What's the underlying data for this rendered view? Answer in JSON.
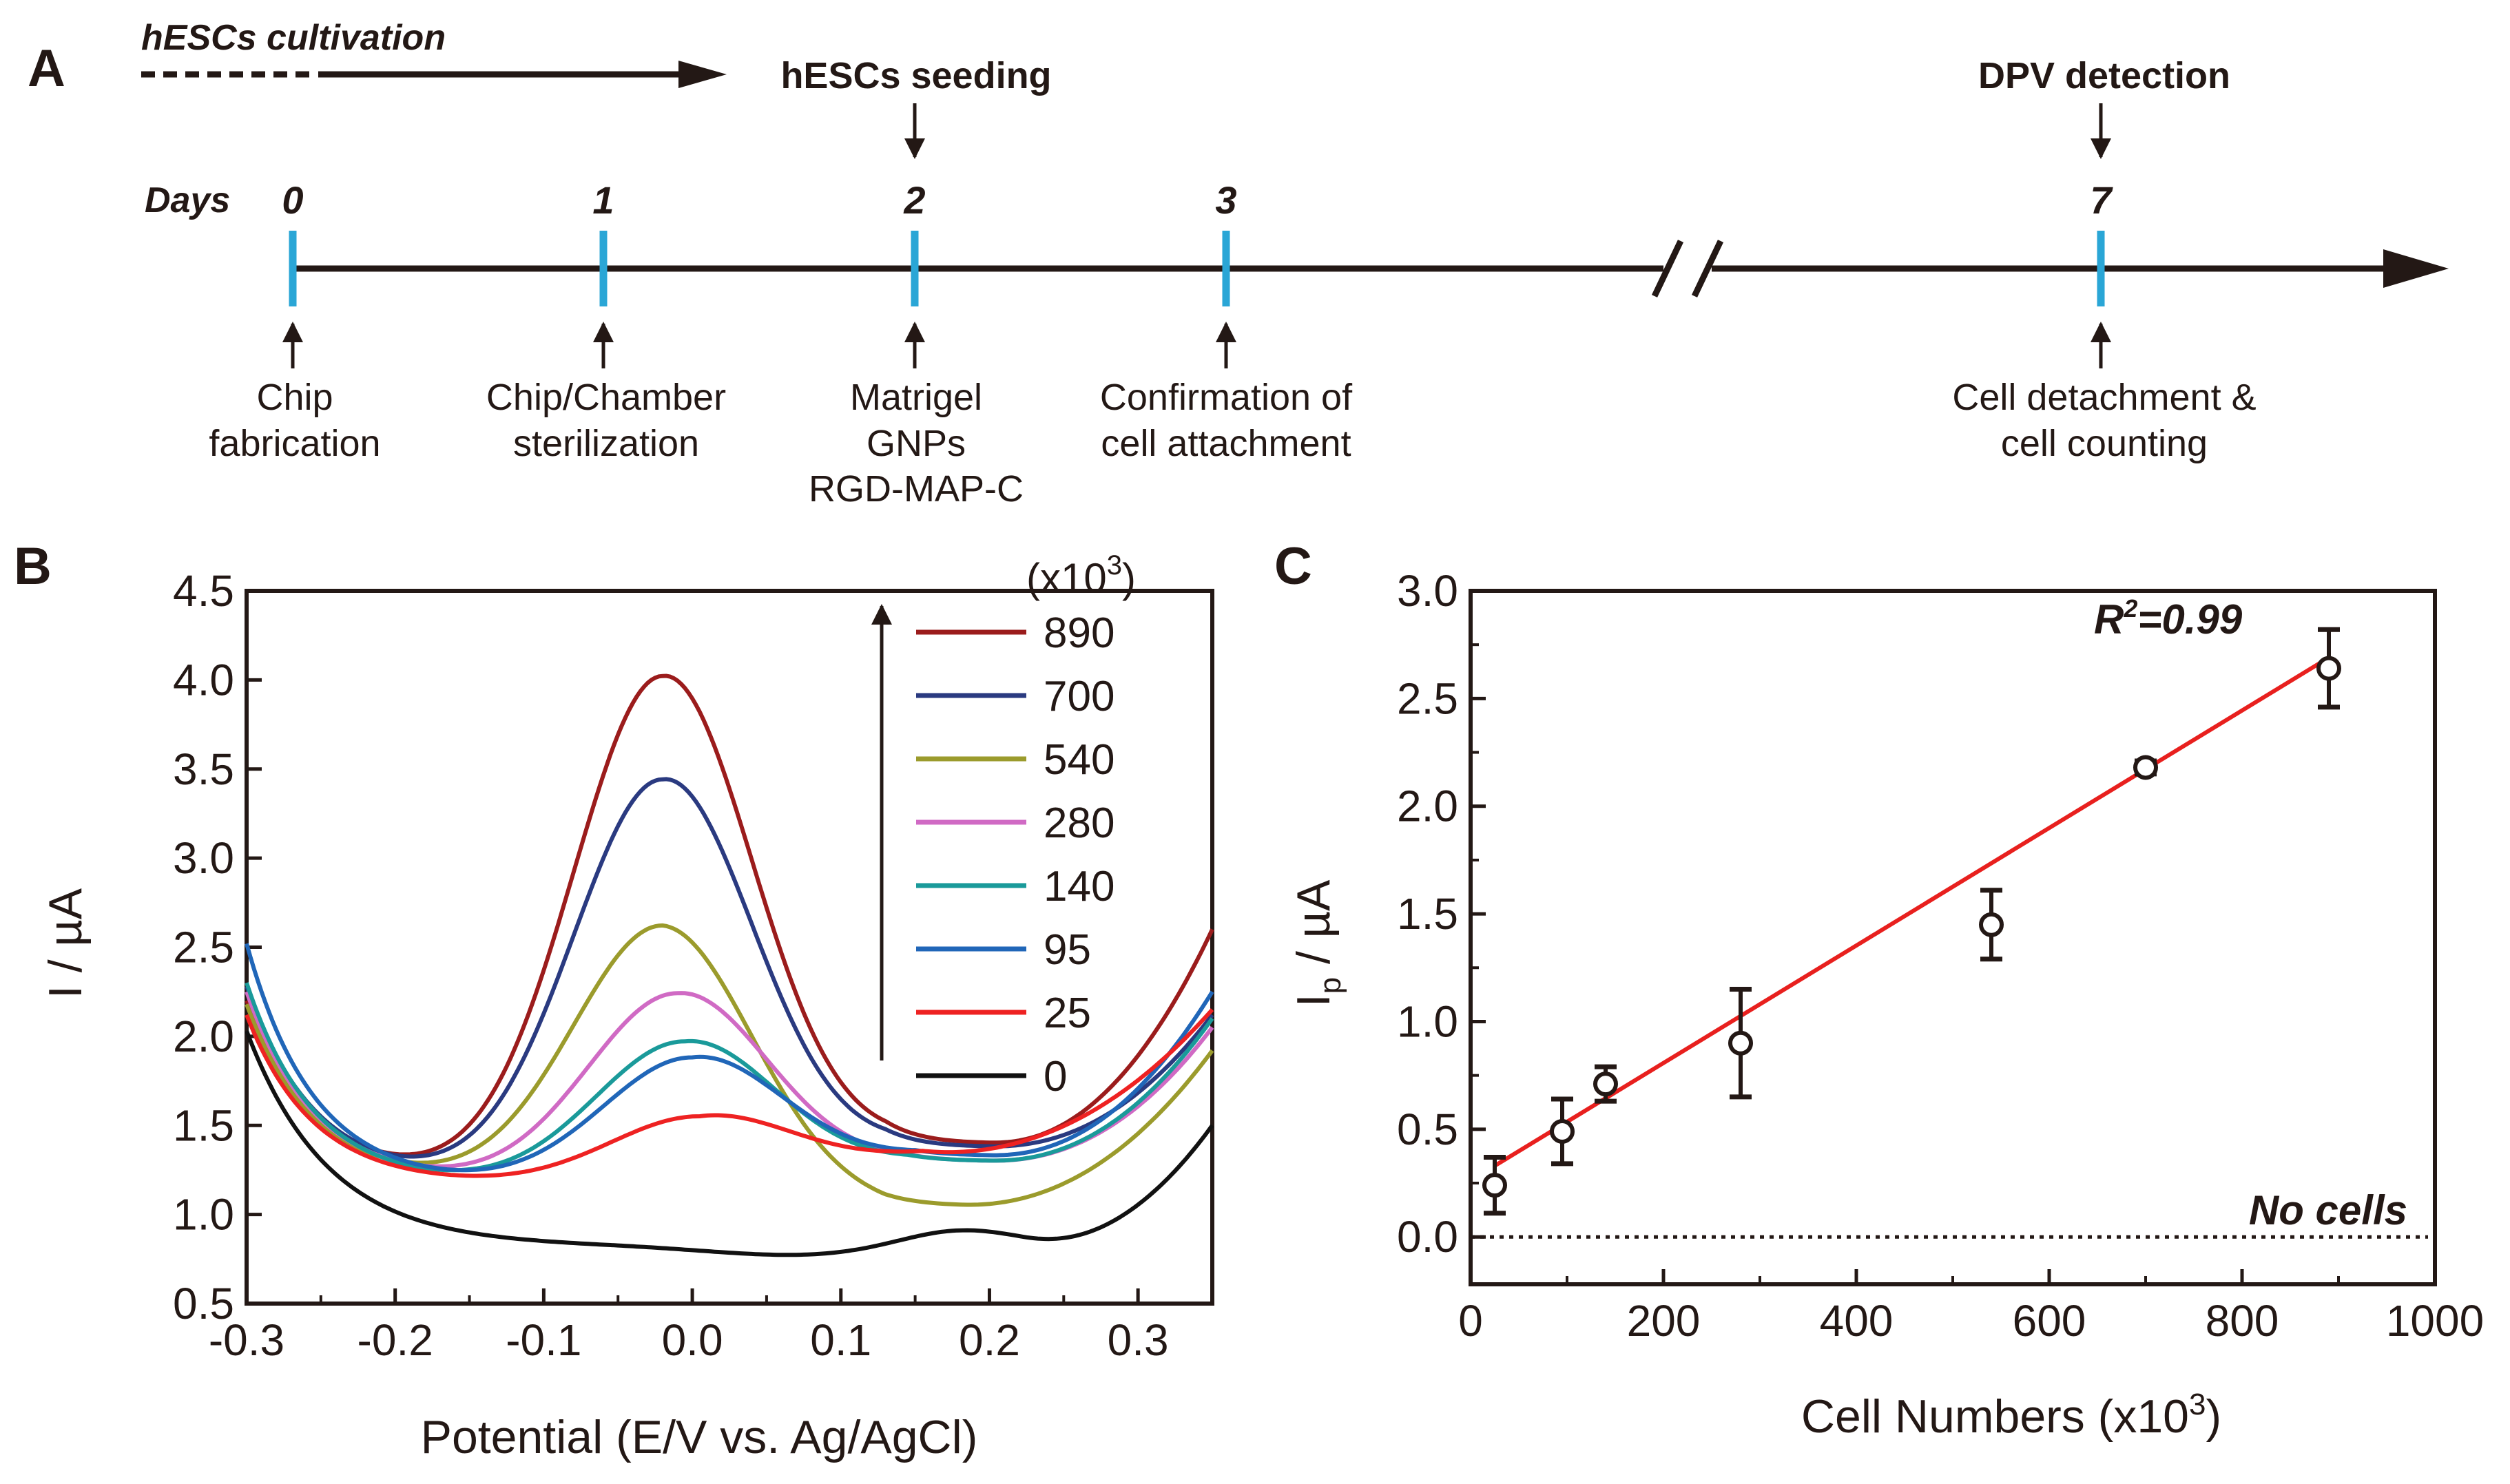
{
  "panelA": {
    "letter": "A",
    "cultivation_label": "hESCs cultivation",
    "days_label": "Days",
    "timeline": [
      {
        "day": "0",
        "label_lines": [
          "Chip",
          "fabrication"
        ]
      },
      {
        "day": "1",
        "label_lines": [
          "Chip/Chamber",
          "sterilization"
        ]
      },
      {
        "day": "2",
        "label_lines": [
          "Matrigel",
          "GNPs",
          "RGD-MAP-C"
        ]
      },
      {
        "day": "3",
        "label_lines": [
          "Confirmation of",
          "cell attachment"
        ]
      },
      {
        "day": "7",
        "label_lines": [
          "Cell detachment &",
          "cell counting"
        ]
      }
    ],
    "seeding_label": "hESCs seeding",
    "dpv_label": "DPV detection"
  },
  "colors": {
    "tick_blue": "#2aa6d6",
    "fit_red": "#e8201e",
    "ink": "#231815"
  },
  "chart_data": [
    {
      "panel": "B",
      "type": "line",
      "title": "",
      "xlabel": "Potential (E/V vs. Ag/AgCl)",
      "ylabel": "I / µA",
      "xlim": [
        -0.3,
        0.35
      ],
      "ylim": [
        0.5,
        4.5
      ],
      "xticks": [
        -0.3,
        -0.2,
        -0.1,
        0.0,
        0.1,
        0.2,
        0.3
      ],
      "xtick_labels": [
        "-0.3",
        "-0.2",
        "-0.1",
        "0.0",
        "0.1",
        "0.2",
        "0.3"
      ],
      "yticks": [
        0.5,
        1.0,
        1.5,
        2.0,
        2.5,
        3.0,
        3.5,
        4.0,
        4.5
      ],
      "ytick_labels": [
        "0.5",
        "1.0",
        "1.5",
        "2.0",
        "2.5",
        "3.0",
        "3.5",
        "4.0",
        "4.5"
      ],
      "legend_title": "(x10",
      "legend_title_sup": "3",
      "legend_title_end": ")",
      "legend_position": "top-right",
      "series": [
        {
          "name": "890",
          "color": "#9b1c1c",
          "start": 2.2,
          "valley": 1.2,
          "valley_x": -0.17,
          "peak": 4.02,
          "peak_x": -0.02,
          "min2": 1.4,
          "min2_x": 0.2,
          "end": 2.6
        },
        {
          "name": "700",
          "color": "#2a3a80",
          "start": 2.28,
          "valley": 1.19,
          "valley_x": -0.17,
          "peak": 3.44,
          "peak_x": -0.02,
          "min2": 1.38,
          "min2_x": 0.2,
          "end": 2.12
        },
        {
          "name": "540",
          "color": "#9b9b2c",
          "start": 2.18,
          "valley": 1.18,
          "valley_x": -0.17,
          "peak": 2.62,
          "peak_x": -0.02,
          "min2": 1.05,
          "min2_x": 0.18,
          "end": 1.92
        },
        {
          "name": "280",
          "color": "#d06ac4",
          "start": 2.25,
          "valley": 1.18,
          "valley_x": -0.16,
          "peak": 2.24,
          "peak_x": -0.01,
          "min2": 1.3,
          "min2_x": 0.2,
          "end": 2.05
        },
        {
          "name": "140",
          "color": "#1a9a9a",
          "start": 2.3,
          "valley": 1.17,
          "valley_x": -0.16,
          "peak": 1.97,
          "peak_x": -0.005,
          "min2": 1.3,
          "min2_x": 0.2,
          "end": 2.1
        },
        {
          "name": "95",
          "color": "#2066b8",
          "start": 2.52,
          "valley": 1.17,
          "valley_x": -0.15,
          "peak": 1.88,
          "peak_x": 0.0,
          "min2": 1.33,
          "min2_x": 0.2,
          "end": 2.25
        },
        {
          "name": "25",
          "color": "#ee2222",
          "start": 2.12,
          "valley": 1.17,
          "valley_x": -0.15,
          "peak": 1.55,
          "peak_x": 0.005,
          "min2": 1.34,
          "min2_x": 0.16,
          "end": 2.15
        },
        {
          "name": "0",
          "color": "#111111",
          "start": 2.03,
          "valley": 0.77,
          "valley_x": 0.07,
          "peak": 0.91,
          "peak_x": 0.18,
          "min2": 0.9,
          "min2_x": 0.22,
          "end": 1.6,
          "kind": "blank"
        }
      ]
    },
    {
      "panel": "C",
      "type": "scatter",
      "title": "",
      "xlabel": "Cell Numbers (x10",
      "xlabel_sup": "3",
      "xlabel_end": ")",
      "ylabel": "I",
      "ylabel_sub": "p",
      "ylabel_end": " / µA",
      "xlim": [
        0,
        1000
      ],
      "ylim": [
        -0.22,
        3.0
      ],
      "xticks": [
        0,
        200,
        400,
        600,
        800,
        1000
      ],
      "xtick_labels": [
        "0",
        "200",
        "400",
        "600",
        "800",
        "1000"
      ],
      "yticks": [
        0.0,
        0.5,
        1.0,
        1.5,
        2.0,
        2.5,
        3.0
      ],
      "ytick_labels": [
        "0.0",
        "0.5",
        "1.0",
        "1.5",
        "2.0",
        "2.5",
        "3.0"
      ],
      "points": [
        {
          "x": 25,
          "y": 0.24,
          "err": 0.13
        },
        {
          "x": 95,
          "y": 0.49,
          "err": 0.15
        },
        {
          "x": 140,
          "y": 0.71,
          "err": 0.08
        },
        {
          "x": 280,
          "y": 0.9,
          "err": 0.25
        },
        {
          "x": 540,
          "y": 1.45,
          "err": 0.16
        },
        {
          "x": 700,
          "y": 2.18,
          "err": 0.03
        },
        {
          "x": 890,
          "y": 2.64,
          "err": 0.18
        }
      ],
      "fit": {
        "x0": 25,
        "y0": 0.33,
        "x1": 890,
        "y1": 2.69
      },
      "r2_prefix": "R",
      "r2_sup": "2",
      "r2_suffix": "=0.99",
      "baseline": 0.0,
      "baseline_label": "No cells"
    }
  ]
}
